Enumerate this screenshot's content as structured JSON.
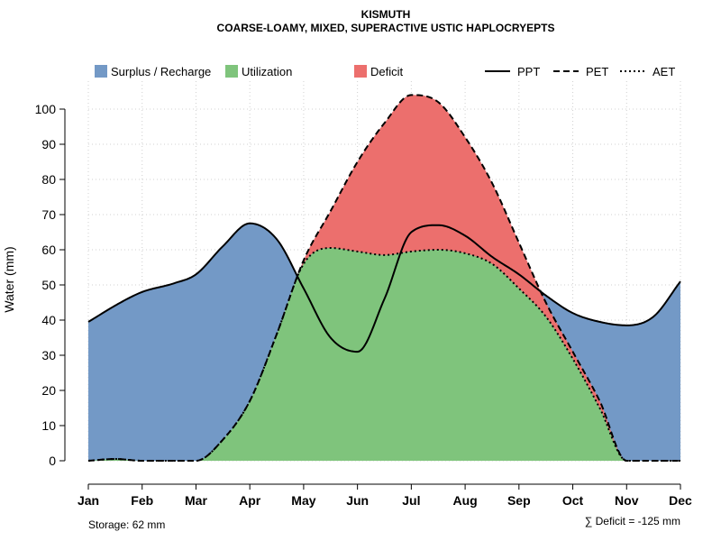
{
  "chart_data": {
    "type": "area",
    "title": "KISMUTH",
    "subtitle": "COARSE-LOAMY, MIXED, SUPERACTIVE USTIC HAPLOCRYEPTS",
    "ylabel": "Water (mm)",
    "xlabel": "",
    "ylim": [
      0,
      108
    ],
    "yticks": [
      0,
      10,
      20,
      30,
      40,
      50,
      60,
      70,
      80,
      90,
      100
    ],
    "categories": [
      "Jan",
      "Feb",
      "Mar",
      "Apr",
      "May",
      "Jun",
      "Jul",
      "Aug",
      "Sep",
      "Oct",
      "Nov",
      "Dec"
    ],
    "grid": true,
    "legend": {
      "position": "top",
      "fills": [
        {
          "label": "Surplus / Recharge",
          "color": "#7399c6"
        },
        {
          "label": "Utilization",
          "color": "#7fc47c"
        },
        {
          "label": "Deficit",
          "color": "#ec6f6d"
        }
      ],
      "lines": [
        {
          "label": "PPT",
          "style": "solid"
        },
        {
          "label": "PET",
          "style": "dashed"
        },
        {
          "label": "AET",
          "style": "dotted"
        }
      ]
    },
    "series": [
      {
        "name": "PPT",
        "x": [
          1,
          1.6,
          2,
          2.6,
          3,
          3.5,
          4,
          4.5,
          5,
          5.5,
          6,
          6.5,
          7,
          7.5,
          8,
          8.5,
          9,
          9.5,
          10,
          10.5,
          11,
          11.5,
          12
        ],
        "values": [
          39.5,
          45,
          48,
          50.5,
          53,
          61,
          67.5,
          63,
          49,
          35,
          31,
          46,
          65,
          67,
          64,
          58,
          53,
          47,
          42,
          39.5,
          38.5,
          41,
          51
        ]
      },
      {
        "name": "PET",
        "x": [
          1,
          1.5,
          2,
          2.5,
          3,
          3.5,
          4,
          4.5,
          5,
          5.5,
          6,
          6.5,
          7,
          7.5,
          8,
          8.5,
          9,
          9.5,
          10,
          10.5,
          11,
          11.5,
          12
        ],
        "values": [
          0,
          0.5,
          0,
          0,
          0,
          6,
          17,
          36,
          57,
          71,
          85,
          96,
          104,
          102,
          92,
          79,
          62,
          45,
          31,
          17,
          0,
          0,
          0
        ]
      },
      {
        "name": "AET",
        "x": [
          1,
          1.5,
          2,
          2.5,
          3,
          3.5,
          4,
          4.5,
          5,
          5.5,
          6,
          6.5,
          7,
          7.5,
          8,
          8.5,
          9,
          9.5,
          10,
          10.5,
          11,
          11.5,
          12
        ],
        "values": [
          0,
          0.5,
          0,
          0,
          0,
          6,
          17,
          36,
          56,
          60.5,
          59.5,
          58.5,
          59.5,
          60,
          59,
          56,
          49,
          41,
          29,
          15,
          0,
          0,
          0
        ]
      }
    ],
    "annotations": {
      "storage": "Storage: 62 mm",
      "deficit": "∑ Deficit = -125 mm"
    },
    "colors": {
      "surplus": "#7399c6",
      "utilization": "#7fc47c",
      "deficit": "#ec6f6d"
    }
  }
}
